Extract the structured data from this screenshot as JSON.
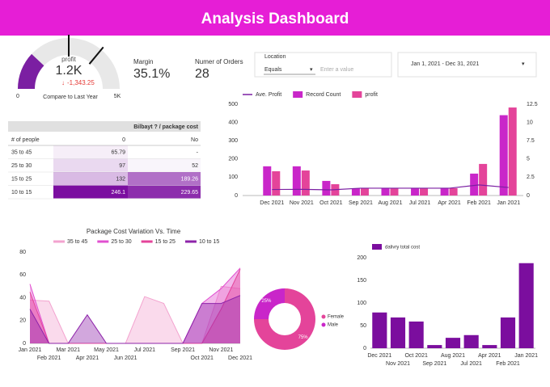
{
  "header": {
    "title": "Analysis Dashboard"
  },
  "gauge": {
    "label": "profit",
    "value": 1200,
    "value_label": "1.2K",
    "change": "-1,343.25",
    "compare": "Compare to Last Year",
    "min": {
      "value": 0,
      "label": "0"
    },
    "max": {
      "value": 5000,
      "label": "5K"
    },
    "targets": [
      2500,
      3600
    ],
    "color": "#7b1fa2"
  },
  "scorecards": [
    {
      "label": "Margin",
      "value": "35.1%"
    },
    {
      "label": "Numer of Orders",
      "value": "28"
    }
  ],
  "filters": {
    "location": {
      "label": "Location",
      "operator": "Equals",
      "placeholder": "Enter a value"
    },
    "date_range": "Jan 1, 2021 - Dec 31, 2021"
  },
  "table": {
    "title": "Bilbayt ? / package cost",
    "header": [
      "# of people",
      "0",
      "No"
    ],
    "rows": [
      [
        "35 to 45",
        "65.79",
        "-"
      ],
      [
        "25 to 30",
        "97",
        "52"
      ],
      [
        "15 to 25",
        "132",
        "189.26"
      ],
      [
        "10 to 15",
        "246.1",
        "229.65"
      ]
    ]
  },
  "chart_data": [
    {
      "type": "combo",
      "categories": [
        "Dec 2021",
        "Nov 2021",
        "Oct 2021",
        "Sep 2021",
        "Aug 2021",
        "Jul 2021",
        "Apr 2021",
        "Feb 2021",
        "Jan 2021"
      ],
      "series": [
        {
          "name": "Ave. Profit",
          "type": "line",
          "color": "#7b1fa2",
          "values": [
            33,
            34,
            31,
            40,
            40,
            40,
            40,
            58,
            44
          ]
        },
        {
          "name": "Record Count",
          "type": "bar",
          "axis": "y2",
          "color": "#c926c9",
          "values": [
            4,
            4,
            2,
            1,
            1,
            1,
            1,
            3,
            11
          ]
        },
        {
          "name": "profit",
          "type": "bar",
          "color": "#e4449a",
          "values": [
            133,
            137,
            62,
            40,
            40,
            40,
            40,
            173,
            482
          ]
        }
      ],
      "ylim": [
        0,
        500
      ],
      "yticks": [
        0,
        100,
        200,
        300,
        400,
        500
      ],
      "y2lim": [
        0,
        12.5
      ],
      "y2ticks": [
        0,
        2.5,
        5,
        7.5,
        10,
        12.5
      ],
      "grid": false,
      "legend": "top"
    },
    {
      "type": "area",
      "title": "Package Cost Variation Vs. Time",
      "categories": [
        "Jan 2021",
        "Feb 2021",
        "Mar 2021",
        "Apr 2021",
        "May 2021",
        "Jun 2021",
        "Jul 2021",
        null,
        "Sep 2021",
        "Oct 2021",
        "Nov 2021",
        "Dec 2021"
      ],
      "series": [
        {
          "name": "35 to 45",
          "color": "#f3a3cf",
          "values": [
            38,
            37,
            0,
            0,
            0,
            0,
            41,
            35,
            0,
            0,
            50,
            48
          ]
        },
        {
          "name": "25 to 30",
          "color": "#e150d0",
          "values": [
            52,
            0,
            0,
            0,
            0,
            0,
            0,
            0,
            0,
            35,
            48,
            66
          ]
        },
        {
          "name": "15 to 25",
          "color": "#e4449a",
          "values": [
            45,
            0,
            0,
            0,
            0,
            0,
            0,
            0,
            0,
            0,
            30,
            65
          ]
        },
        {
          "name": "10 to 15",
          "color": "#8e24aa",
          "values": [
            30,
            0,
            0,
            25,
            0,
            0,
            0,
            0,
            0,
            35,
            35,
            42
          ]
        }
      ],
      "ylim": [
        0,
        80
      ],
      "yticks": [
        0,
        20,
        40,
        60,
        80
      ],
      "grid": false,
      "legend": "top"
    },
    {
      "type": "pie",
      "donut": true,
      "categories": [
        "Female",
        "Male"
      ],
      "values": [
        75,
        25
      ],
      "value_labels": [
        "75%",
        "25%"
      ],
      "colors": [
        "#e4449a",
        "#c926c9"
      ],
      "legend": "right"
    },
    {
      "type": "bar",
      "categories": [
        "Dec 2021",
        "Nov 2021",
        "Oct 2021",
        "Sep 2021",
        "Aug 2021",
        "Jul 2021",
        "Apr 2021",
        "Feb 2021",
        "Jan 2021"
      ],
      "series": [
        {
          "name": "dalivry total cost",
          "color": "#7b0e9e",
          "values": [
            79,
            68,
            59,
            7,
            23,
            29,
            7,
            68,
            188
          ]
        }
      ],
      "ylim": [
        0,
        200
      ],
      "yticks": [
        0,
        50,
        100,
        150,
        200
      ],
      "grid": false,
      "legend": "top"
    }
  ]
}
